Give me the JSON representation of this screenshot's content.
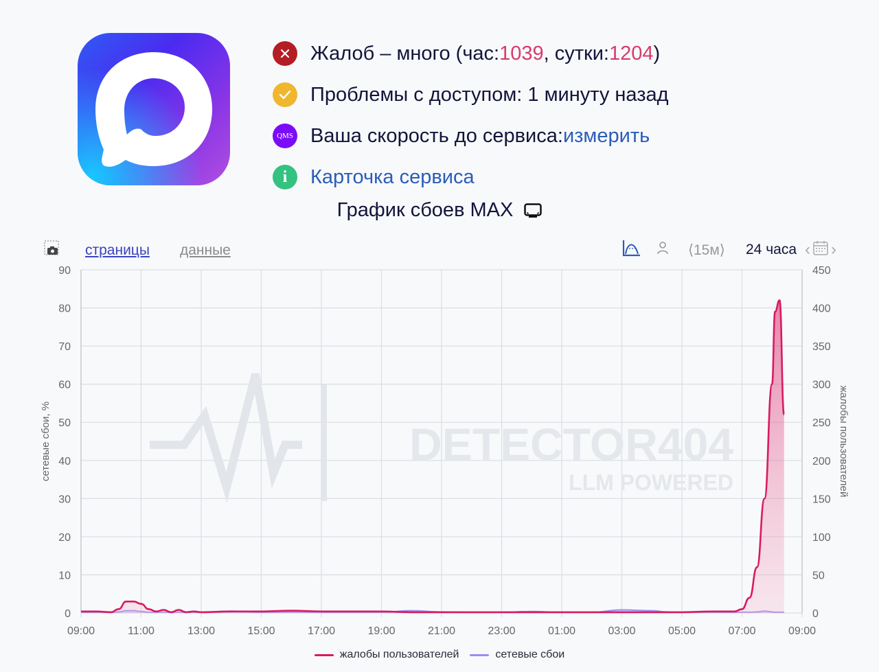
{
  "service": {
    "name": "MAX",
    "logo_icon": "max-messenger-logo"
  },
  "status": [
    {
      "icon": "error-x-icon",
      "color": "#b51d24",
      "text": "Жалоб – много (час: ",
      "hour_value": "1039",
      "mid": ", сутки: ",
      "day_value": "1204",
      "end": ")"
    },
    {
      "icon": "check-icon",
      "color": "#efb62e",
      "text": "Проблемы с доступом: 1 минуту назад"
    },
    {
      "icon": "qms-icon",
      "icon_text": "QMS",
      "color": "#7a0cf7",
      "text": "Ваша скорость до сервиса: ",
      "link": "измерить"
    },
    {
      "icon": "info-icon",
      "icon_text": "i",
      "color": "#33c27f",
      "link": "Карточка сервиса"
    }
  ],
  "chart_header": {
    "title": "График сбоев MAX",
    "title_icon": "tv-icon"
  },
  "toolbar": {
    "screenshot_icon": "camera-icon",
    "tab_pages": "страницы",
    "tab_data": "данные",
    "chart_type_icon": "area-chart-icon",
    "user_icon": "person-icon",
    "interval": "⟨15м⟩",
    "period": "24 часа",
    "prev": "‹",
    "next": "›",
    "calendar_icon": "calendar-icon"
  },
  "legend": [
    {
      "label": "жалобы пользователей",
      "color": "#d81b60"
    },
    {
      "label": "сетевые сбои",
      "color": "#9b8cf0"
    }
  ],
  "watermark": {
    "brand": "DETECTOR404",
    "tagline": "LLM POWERED"
  },
  "chart_data": {
    "type": "area",
    "title": "График сбоев MAX",
    "x_ticks": [
      "09:00",
      "11:00",
      "13:00",
      "15:00",
      "17:00",
      "19:00",
      "21:00",
      "23:00",
      "01:00",
      "03:00",
      "05:00",
      "07:00",
      "09:00"
    ],
    "ylabel_left": "сетевые сбои, %",
    "ylabel_right": "жалобы пользователей",
    "ylim_left": [
      0,
      90
    ],
    "yticks_left": [
      0,
      10,
      20,
      30,
      40,
      50,
      60,
      70,
      80,
      90
    ],
    "ylim_right": [
      0,
      450
    ],
    "yticks_right": [
      0,
      50,
      100,
      150,
      200,
      250,
      300,
      350,
      400,
      450
    ],
    "grid": true,
    "legend_position": "bottom",
    "x_hours_from_start": [
      0,
      0.5,
      1,
      1.25,
      1.5,
      1.75,
      2,
      2.25,
      2.5,
      2.75,
      3,
      3.25,
      3.5,
      3.75,
      4,
      5,
      6,
      7,
      8,
      9,
      10,
      11,
      12,
      13,
      14,
      15,
      16,
      17,
      18,
      19,
      19.5,
      20,
      21,
      21.5,
      21.75,
      22,
      22.25,
      22.5,
      22.75,
      23,
      23.1,
      23.25,
      23.4
    ],
    "series": [
      {
        "name": "жалобы пользователей",
        "axis": "right",
        "color": "#d81b60",
        "values": [
          2,
          2,
          1,
          5,
          15,
          15,
          12,
          5,
          2,
          4,
          1,
          4,
          1,
          2,
          1,
          2,
          2,
          3,
          2,
          2,
          2,
          1,
          1,
          1,
          1,
          1,
          1,
          1,
          1,
          1,
          1,
          1,
          2,
          2,
          2,
          5,
          20,
          60,
          150,
          300,
          395,
          410,
          260
        ]
      },
      {
        "name": "сетевые сбои",
        "axis": "left",
        "color": "#9b8cf0",
        "values": [
          0.2,
          0.2,
          0.2,
          0.3,
          0.6,
          0.6,
          0.4,
          0.2,
          0.2,
          0.2,
          0.2,
          0.2,
          0.2,
          0.2,
          0.2,
          0.5,
          0.2,
          0.2,
          0.2,
          0.2,
          0.2,
          0.6,
          0.3,
          0.2,
          0.2,
          0.4,
          0.2,
          0.2,
          0.8,
          0.6,
          0.3,
          0.2,
          0.2,
          0.2,
          0.2,
          0.2,
          0.2,
          0.3,
          0.5,
          0.3,
          0.2,
          0.2,
          0.2
        ]
      }
    ]
  }
}
